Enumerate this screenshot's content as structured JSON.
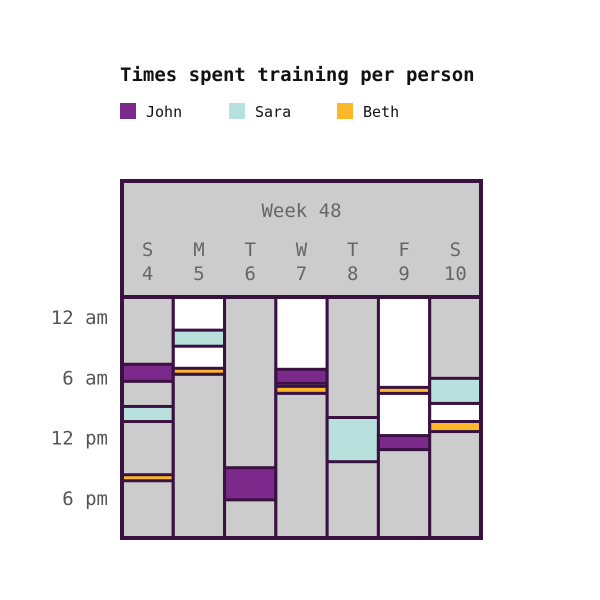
{
  "chart_data": {
    "type": "timeline",
    "title": "Times spent training per person",
    "header": "Week 48",
    "days": [
      {
        "letter": "S",
        "date": "4"
      },
      {
        "letter": "M",
        "date": "5"
      },
      {
        "letter": "T",
        "date": "6"
      },
      {
        "letter": "W",
        "date": "7"
      },
      {
        "letter": "T",
        "date": "8"
      },
      {
        "letter": "F",
        "date": "9"
      },
      {
        "letter": "S",
        "date": "10"
      }
    ],
    "y_ticks": [
      {
        "label": "12 am",
        "hour": 0
      },
      {
        "label": "6 am",
        "hour": 6
      },
      {
        "label": "12 pm",
        "hour": 12
      },
      {
        "label": "6 pm",
        "hour": 18
      }
    ],
    "y_range_hours": [
      -2,
      22
    ],
    "legend": [
      {
        "name": "John",
        "color": "#7b2a8c"
      },
      {
        "name": "Sara",
        "color": "#b8e0dc"
      },
      {
        "name": "Beth",
        "color": "#fbb829"
      }
    ],
    "colors": {
      "border": "#3a1242",
      "idle": "#cccccc",
      "gap": "#ffffff"
    },
    "days_data": [
      {
        "day": "4",
        "background": "idle",
        "sessions": [
          {
            "person": "John",
            "start": 4.7,
            "end": 6.4
          },
          {
            "person": "Sara",
            "start": 8.9,
            "end": 10.4
          },
          {
            "person": "Beth",
            "start": 15.7,
            "end": 16.3
          }
        ]
      },
      {
        "day": "5",
        "background": "gap",
        "sessions": [
          {
            "person": "Sara",
            "start": 1.3,
            "end": 2.9
          },
          {
            "person": "Beth",
            "start": 5.1,
            "end": 5.7
          },
          {
            "person": "idle",
            "start": 5.7,
            "end": 22
          }
        ]
      },
      {
        "day": "6",
        "background": "idle",
        "sessions": [
          {
            "person": "John",
            "start": 15.0,
            "end": 18.2
          }
        ]
      },
      {
        "day": "7",
        "background": "gap",
        "sessions": [
          {
            "person": "John",
            "start": 5.2,
            "end": 6.6
          },
          {
            "person": "Beth",
            "start": 6.9,
            "end": 7.6
          },
          {
            "person": "idle",
            "start": 7.6,
            "end": 22
          }
        ]
      },
      {
        "day": "8",
        "background": "idle",
        "sessions": [
          {
            "person": "Sara",
            "start": 10.0,
            "end": 14.4
          }
        ]
      },
      {
        "day": "9",
        "background": "gap",
        "sessions": [
          {
            "person": "Beth",
            "start": 7.0,
            "end": 7.6
          },
          {
            "person": "John",
            "start": 11.8,
            "end": 13.2
          },
          {
            "person": "idle",
            "start": 13.2,
            "end": 22
          }
        ]
      },
      {
        "day": "10",
        "background": "idle",
        "sessions": [
          {
            "person": "Sara",
            "start": 6.1,
            "end": 8.6
          },
          {
            "person": "gap",
            "start": 8.6,
            "end": 10.4
          },
          {
            "person": "Beth",
            "start": 10.4,
            "end": 11.4
          }
        ]
      }
    ]
  }
}
